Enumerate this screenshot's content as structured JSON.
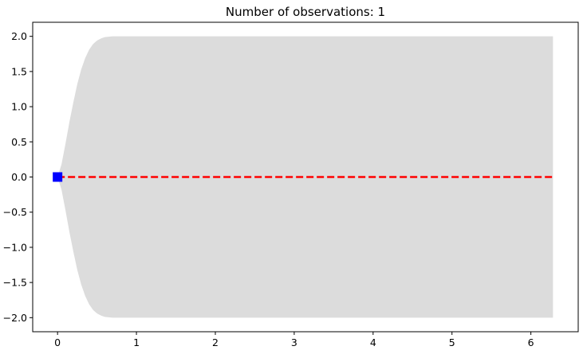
{
  "chart_data": {
    "type": "line",
    "title": "Number of observations: 1",
    "xlabel": "",
    "ylabel": "",
    "xlim": [
      -0.315,
      6.6
    ],
    "ylim": [
      -2.2,
      2.2
    ],
    "x_ticks": [
      0,
      1,
      2,
      3,
      4,
      5,
      6
    ],
    "x_tick_labels": [
      "0",
      "1",
      "2",
      "3",
      "4",
      "5",
      "6"
    ],
    "y_ticks": [
      2.0,
      1.5,
      1.0,
      0.5,
      0.0,
      -0.5,
      -1.0,
      -1.5,
      -2.0
    ],
    "y_tick_labels": [
      "2.0",
      "1.5",
      "1.0",
      "0.5",
      "0.0",
      "−0.5",
      "−1.0",
      "−1.5",
      "−2.0"
    ],
    "grid": false,
    "series": [
      {
        "style": "dashed-line",
        "color": "#ff0000",
        "x": [
          0,
          6.28
        ],
        "y": [
          0,
          0
        ]
      },
      {
        "style": "square-marker",
        "color": "#0000ff",
        "x": [
          0
        ],
        "y": [
          0
        ]
      }
    ],
    "band": {
      "color": "#dcdcdc",
      "x": [
        0,
        0.05,
        0.1,
        0.15,
        0.2,
        0.25,
        0.3,
        0.35,
        0.4,
        0.45,
        0.5,
        0.55,
        0.6,
        0.7,
        0.8,
        1.0,
        6.28
      ],
      "upper": [
        0.0,
        0.18,
        0.47,
        0.78,
        1.06,
        1.32,
        1.53,
        1.69,
        1.81,
        1.89,
        1.94,
        1.97,
        1.99,
        2.0,
        2.0,
        2.0,
        2.0
      ],
      "lower": [
        0.0,
        -0.18,
        -0.47,
        -0.78,
        -1.06,
        -1.32,
        -1.53,
        -1.69,
        -1.81,
        -1.89,
        -1.94,
        -1.97,
        -1.99,
        -2.0,
        -2.0,
        -2.0,
        -2.0
      ]
    }
  }
}
